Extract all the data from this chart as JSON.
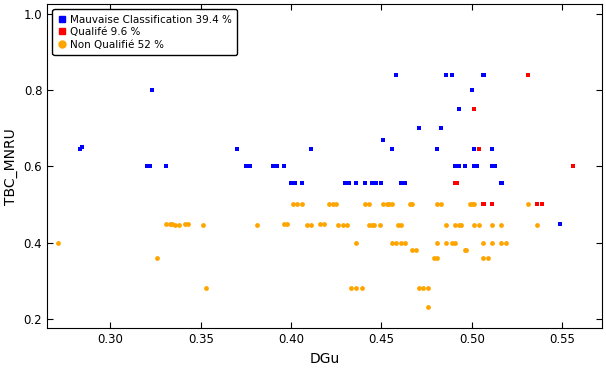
{
  "title": "",
  "xlabel": "DGu",
  "ylabel": "TBC_MNRU",
  "xlim": [
    0.265,
    0.572
  ],
  "ylim": [
    0.175,
    1.025
  ],
  "xticks": [
    0.3,
    0.35,
    0.4,
    0.45,
    0.5,
    0.55
  ],
  "yticks": [
    0.2,
    0.4,
    0.6,
    0.8,
    1.0
  ],
  "legend": [
    {
      "label": "Mauvaise Classification 39.4 %",
      "color": "#0000FF"
    },
    {
      "label": "Qualifé 9.6 %",
      "color": "#FF0000"
    },
    {
      "label": "Non Qualifié 52 %",
      "color": "#FFA500"
    }
  ],
  "blue_points": [
    [
      0.283,
      0.645
    ],
    [
      0.284,
      0.65
    ],
    [
      0.32,
      0.6
    ],
    [
      0.322,
      0.6
    ],
    [
      0.323,
      0.799
    ],
    [
      0.331,
      0.6
    ],
    [
      0.37,
      0.645
    ],
    [
      0.375,
      0.6
    ],
    [
      0.377,
      0.6
    ],
    [
      0.39,
      0.6
    ],
    [
      0.392,
      0.6
    ],
    [
      0.396,
      0.6
    ],
    [
      0.4,
      0.555
    ],
    [
      0.402,
      0.555
    ],
    [
      0.406,
      0.555
    ],
    [
      0.411,
      0.645
    ],
    [
      0.43,
      0.555
    ],
    [
      0.432,
      0.555
    ],
    [
      0.436,
      0.555
    ],
    [
      0.441,
      0.555
    ],
    [
      0.445,
      0.555
    ],
    [
      0.447,
      0.555
    ],
    [
      0.45,
      0.555
    ],
    [
      0.451,
      0.67
    ],
    [
      0.456,
      0.645
    ],
    [
      0.458,
      0.84
    ],
    [
      0.461,
      0.555
    ],
    [
      0.463,
      0.555
    ],
    [
      0.471,
      0.7
    ],
    [
      0.481,
      0.645
    ],
    [
      0.483,
      0.7
    ],
    [
      0.486,
      0.84
    ],
    [
      0.489,
      0.84
    ],
    [
      0.491,
      0.6
    ],
    [
      0.493,
      0.6
    ],
    [
      0.493,
      0.75
    ],
    [
      0.496,
      0.6
    ],
    [
      0.5,
      0.8
    ],
    [
      0.501,
      0.645
    ],
    [
      0.501,
      0.6
    ],
    [
      0.503,
      0.6
    ],
    [
      0.506,
      0.84
    ],
    [
      0.507,
      0.84
    ],
    [
      0.511,
      0.645
    ],
    [
      0.511,
      0.6
    ],
    [
      0.513,
      0.6
    ],
    [
      0.516,
      0.555
    ],
    [
      0.517,
      0.555
    ],
    [
      0.549,
      0.45
    ]
  ],
  "red_points": [
    [
      0.491,
      0.555
    ],
    [
      0.492,
      0.555
    ],
    [
      0.501,
      0.75
    ],
    [
      0.504,
      0.645
    ],
    [
      0.506,
      0.5
    ],
    [
      0.507,
      0.5
    ],
    [
      0.511,
      0.5
    ],
    [
      0.531,
      0.84
    ],
    [
      0.536,
      0.5
    ],
    [
      0.539,
      0.5
    ],
    [
      0.556,
      0.6
    ]
  ],
  "orange_points": [
    [
      0.271,
      0.4
    ],
    [
      0.326,
      0.36
    ],
    [
      0.331,
      0.45
    ],
    [
      0.333,
      0.45
    ],
    [
      0.334,
      0.45
    ],
    [
      0.336,
      0.445
    ],
    [
      0.338,
      0.445
    ],
    [
      0.341,
      0.45
    ],
    [
      0.343,
      0.45
    ],
    [
      0.351,
      0.445
    ],
    [
      0.353,
      0.28
    ],
    [
      0.381,
      0.445
    ],
    [
      0.396,
      0.45
    ],
    [
      0.398,
      0.45
    ],
    [
      0.401,
      0.5
    ],
    [
      0.403,
      0.5
    ],
    [
      0.406,
      0.5
    ],
    [
      0.409,
      0.445
    ],
    [
      0.411,
      0.445
    ],
    [
      0.416,
      0.45
    ],
    [
      0.418,
      0.45
    ],
    [
      0.421,
      0.5
    ],
    [
      0.423,
      0.5
    ],
    [
      0.425,
      0.5
    ],
    [
      0.426,
      0.445
    ],
    [
      0.429,
      0.445
    ],
    [
      0.431,
      0.445
    ],
    [
      0.433,
      0.28
    ],
    [
      0.436,
      0.28
    ],
    [
      0.436,
      0.4
    ],
    [
      0.439,
      0.28
    ],
    [
      0.441,
      0.5
    ],
    [
      0.443,
      0.5
    ],
    [
      0.443,
      0.445
    ],
    [
      0.445,
      0.445
    ],
    [
      0.446,
      0.445
    ],
    [
      0.449,
      0.445
    ],
    [
      0.451,
      0.5
    ],
    [
      0.453,
      0.5
    ],
    [
      0.454,
      0.5
    ],
    [
      0.456,
      0.5
    ],
    [
      0.456,
      0.4
    ],
    [
      0.458,
      0.4
    ],
    [
      0.459,
      0.445
    ],
    [
      0.461,
      0.445
    ],
    [
      0.461,
      0.4
    ],
    [
      0.463,
      0.4
    ],
    [
      0.466,
      0.5
    ],
    [
      0.467,
      0.5
    ],
    [
      0.467,
      0.38
    ],
    [
      0.469,
      0.38
    ],
    [
      0.471,
      0.28
    ],
    [
      0.473,
      0.28
    ],
    [
      0.476,
      0.28
    ],
    [
      0.476,
      0.23
    ],
    [
      0.479,
      0.36
    ],
    [
      0.481,
      0.4
    ],
    [
      0.481,
      0.36
    ],
    [
      0.481,
      0.5
    ],
    [
      0.483,
      0.5
    ],
    [
      0.486,
      0.445
    ],
    [
      0.486,
      0.4
    ],
    [
      0.489,
      0.4
    ],
    [
      0.491,
      0.4
    ],
    [
      0.491,
      0.445
    ],
    [
      0.493,
      0.445
    ],
    [
      0.494,
      0.445
    ],
    [
      0.496,
      0.38
    ],
    [
      0.497,
      0.38
    ],
    [
      0.499,
      0.5
    ],
    [
      0.5,
      0.5
    ],
    [
      0.501,
      0.5
    ],
    [
      0.501,
      0.445
    ],
    [
      0.504,
      0.445
    ],
    [
      0.506,
      0.4
    ],
    [
      0.506,
      0.36
    ],
    [
      0.509,
      0.36
    ],
    [
      0.511,
      0.445
    ],
    [
      0.511,
      0.4
    ],
    [
      0.516,
      0.445
    ],
    [
      0.516,
      0.4
    ],
    [
      0.519,
      0.4
    ],
    [
      0.531,
      0.5
    ],
    [
      0.536,
      0.445
    ]
  ]
}
